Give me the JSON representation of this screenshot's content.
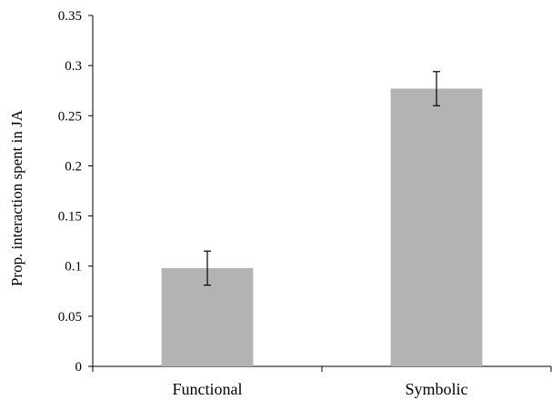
{
  "chart_data": {
    "type": "bar",
    "categories": [
      "Functional",
      "Symbolic"
    ],
    "values": [
      0.098,
      0.277
    ],
    "error": [
      0.017,
      0.017
    ],
    "ylabel": "Prop. interaction spent in JA",
    "xlabel": "",
    "ylim": [
      0,
      0.35
    ],
    "yticks": [
      "0",
      "0.05",
      "0.1",
      "0.15",
      "0.2",
      "0.25",
      "0.3",
      "0.35"
    ],
    "bar_color": "#b3b3b3",
    "grid": false
  }
}
